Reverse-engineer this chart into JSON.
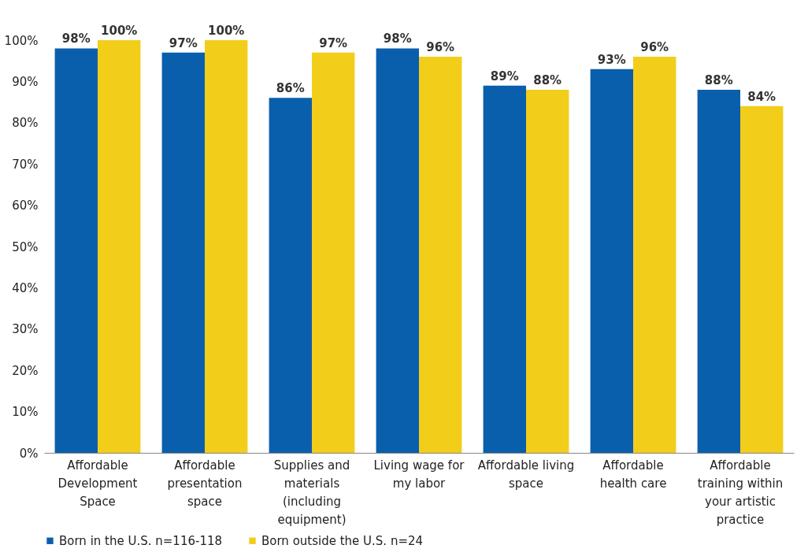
{
  "chart_data": {
    "type": "bar",
    "categories": [
      "Affordable Development Space",
      "Affordable presentation space",
      "Supplies and materials (including equipment)",
      "Living wage for my labor",
      "Affordable living space",
      "Affordable health care",
      "Affordable training within your artistic practice"
    ],
    "series": [
      {
        "name": "Born in the U.S. n=116-118",
        "color": "#0a5fad",
        "values": [
          98,
          97,
          86,
          98,
          89,
          93,
          88
        ],
        "value_labels": [
          "98%",
          "97%",
          "86%",
          "98%",
          "89%",
          "93%",
          "88%"
        ]
      },
      {
        "name": "Born outside the U.S. n=24",
        "color": "#f2cd1a",
        "values": [
          100,
          100,
          97,
          96,
          88,
          96,
          84
        ],
        "value_labels": [
          "100%",
          "100%",
          "97%",
          "96%",
          "88%",
          "96%",
          "84%"
        ]
      }
    ],
    "ylim": [
      0,
      100
    ],
    "yticks": [
      {
        "value": 0,
        "label": "0%"
      },
      {
        "value": 10,
        "label": "10%"
      },
      {
        "value": 20,
        "label": "20%"
      },
      {
        "value": 30,
        "label": "30%"
      },
      {
        "value": 40,
        "label": "40%"
      },
      {
        "value": 50,
        "label": "50%"
      },
      {
        "value": 60,
        "label": "60%"
      },
      {
        "value": 70,
        "label": "70%"
      },
      {
        "value": 80,
        "label": "80%"
      },
      {
        "value": 90,
        "label": "90%"
      },
      {
        "value": 100,
        "label": "100%"
      }
    ],
    "grid": false,
    "legend": "bottom"
  }
}
